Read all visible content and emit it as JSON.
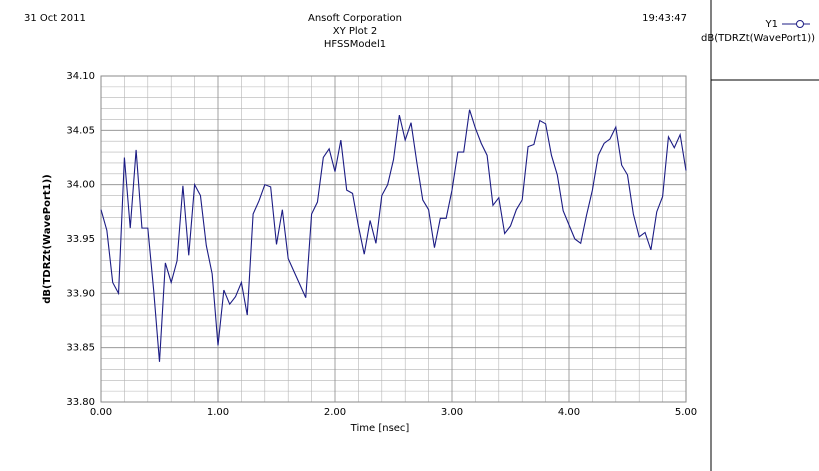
{
  "chart_data": {
    "type": "line",
    "date": "31 Oct 2011",
    "company": "Ansoft Corporation",
    "title": "XY Plot 2",
    "subtitle": "HFSSModel1",
    "time": "19:43:47",
    "xlabel": "Time [nsec]",
    "ylabel": "dB(TDRZt(WavePort1))",
    "x": [
      0,
      0.05,
      0.1,
      0.15,
      0.2,
      0.25,
      0.3,
      0.35,
      0.4,
      0.45,
      0.5,
      0.55,
      0.6,
      0.65,
      0.7,
      0.75,
      0.8,
      0.85,
      0.9,
      0.95,
      1,
      1.05,
      1.1,
      1.15,
      1.2,
      1.25,
      1.3,
      1.35,
      1.4,
      1.45,
      1.5,
      1.55,
      1.6,
      1.65,
      1.7,
      1.75,
      1.8,
      1.85,
      1.9,
      1.95,
      2,
      2.05,
      2.1,
      2.15,
      2.2,
      2.25,
      2.3,
      2.35,
      2.4,
      2.45,
      2.5,
      2.55,
      2.6,
      2.65,
      2.7,
      2.75,
      2.8,
      2.85,
      2.9,
      2.95,
      3,
      3.05,
      3.1,
      3.15,
      3.2,
      3.25,
      3.3,
      3.35,
      3.4,
      3.45,
      3.5,
      3.55,
      3.6,
      3.65,
      3.7,
      3.75,
      3.8,
      3.85,
      3.9,
      3.95,
      4,
      4.05,
      4.1,
      4.15,
      4.2,
      4.25,
      4.3,
      4.35,
      4.4,
      4.45,
      4.5,
      4.55,
      4.6,
      4.65,
      4.7,
      4.75,
      4.8,
      4.85,
      4.9,
      4.95,
      5
    ],
    "series": [
      {
        "name": "Y1",
        "legend_label": "dB(TDRZt(WavePort1))",
        "color": "#1c1c84",
        "values": [
          33.977,
          33.958,
          33.91,
          33.9,
          34.025,
          33.96,
          34.032,
          33.96,
          33.96,
          33.903,
          33.837,
          33.928,
          33.91,
          33.93,
          33.999,
          33.935,
          34.0,
          33.99,
          33.944,
          33.918,
          33.852,
          33.903,
          33.89,
          33.897,
          33.91,
          33.88,
          33.973,
          33.985,
          34.0,
          33.998,
          33.945,
          33.977,
          33.932,
          33.92,
          33.908,
          33.896,
          33.973,
          33.984,
          34.025,
          34.033,
          34.012,
          34.041,
          33.995,
          33.992,
          33.962,
          33.936,
          33.967,
          33.946,
          33.99,
          34.0,
          34.023,
          34.064,
          34.041,
          34.057,
          34.02,
          33.986,
          33.977,
          33.942,
          33.969,
          33.969,
          33.995,
          34.03,
          34.03,
          34.069,
          34.052,
          34.038,
          34.027,
          33.981,
          33.988,
          33.955,
          33.962,
          33.977,
          33.986,
          34.035,
          34.037,
          34.059,
          34.056,
          34.027,
          34.009,
          33.976,
          33.963,
          33.95,
          33.946,
          33.972,
          33.995,
          34.027,
          34.038,
          34.042,
          34.053,
          34.018,
          34.009,
          33.973,
          33.952,
          33.956,
          33.94,
          33.975,
          33.989,
          34.044,
          34.034,
          34.046,
          34.013
        ]
      }
    ],
    "xlim": [
      0,
      5
    ],
    "xticks": [
      {
        "value": 0,
        "label": "0.00"
      },
      {
        "value": 1,
        "label": "1.00"
      },
      {
        "value": 2,
        "label": "2.00"
      },
      {
        "value": 3,
        "label": "3.00"
      },
      {
        "value": 4,
        "label": "4.00"
      },
      {
        "value": 5,
        "label": "5.00"
      }
    ],
    "ylim": [
      33.8,
      34.1
    ],
    "yticks": [
      {
        "value": 33.8,
        "label": "33.80"
      },
      33.85,
      {
        "value": 33.9,
        "label": "33.90"
      },
      33.95,
      {
        "value": 34.0,
        "label": "34.00"
      },
      34.05,
      {
        "value": 34.1,
        "label": "34.10"
      }
    ],
    "grid": true
  }
}
